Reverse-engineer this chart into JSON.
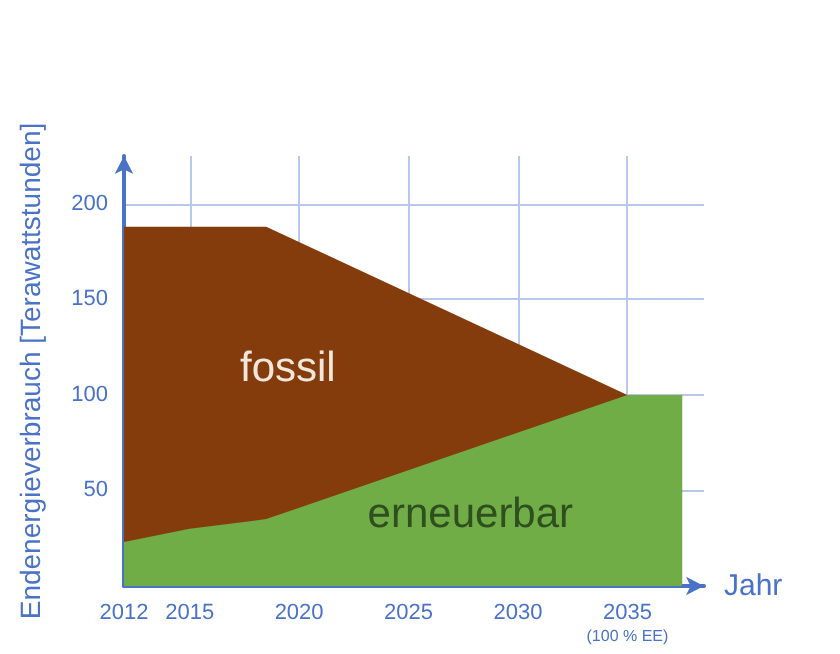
{
  "chart_data": {
    "type": "area",
    "stacked": true,
    "xlabel": "Jahr",
    "ylabel": "Endenergieverbrauch [Terawattstunden]",
    "x": [
      2012,
      2015,
      2018.5,
      2035,
      2037.5
    ],
    "series": [
      {
        "name": "erneuerbar",
        "color": "#70ad47",
        "values": [
          23,
          30,
          35,
          100,
          100
        ]
      },
      {
        "name": "fossil",
        "color": "#843c0c",
        "values": [
          165,
          158,
          153,
          0,
          0
        ]
      }
    ],
    "xlim": [
      2012,
      2038.5
    ],
    "xticks": [
      2012,
      2015,
      2020,
      2025,
      2030,
      2035
    ],
    "ylim": [
      0,
      225
    ],
    "yticks": [
      50,
      100,
      150,
      200
    ],
    "annotations": [
      "(100 % EE)"
    ],
    "grid": true,
    "legend": false,
    "marker": "none"
  }
}
